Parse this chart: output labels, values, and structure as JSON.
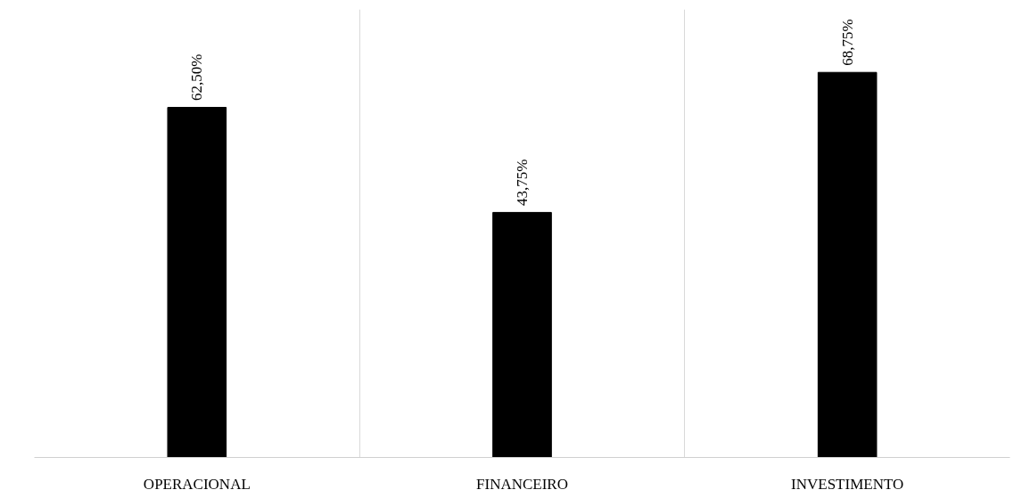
{
  "chart_data": {
    "type": "bar",
    "categories": [
      "OPERACIONAL",
      "FINANCEIRO",
      "INVESTIMENTO"
    ],
    "values": [
      62.5,
      43.75,
      68.75
    ],
    "color": "#000000",
    "value_labels": [
      "62,50%",
      "43,75%",
      "68,75%"
    ],
    "ylim": [
      0,
      80
    ],
    "grid": "x"
  }
}
